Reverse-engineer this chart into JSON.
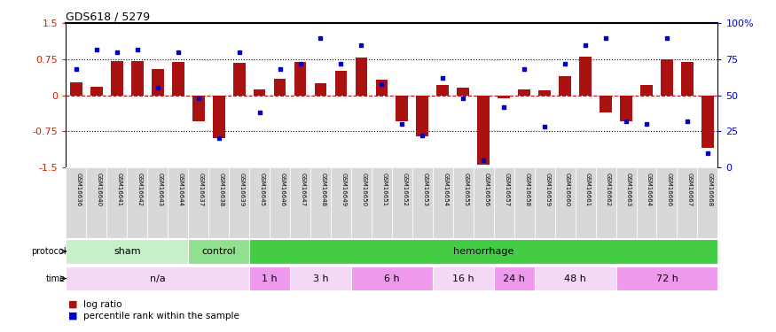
{
  "title": "GDS618 / 5279",
  "samples": [
    "GSM16636",
    "GSM16640",
    "GSM16641",
    "GSM16642",
    "GSM16643",
    "GSM16644",
    "GSM16637",
    "GSM16638",
    "GSM16639",
    "GSM16645",
    "GSM16646",
    "GSM16647",
    "GSM16648",
    "GSM16649",
    "GSM16650",
    "GSM16651",
    "GSM16652",
    "GSM16653",
    "GSM16654",
    "GSM16655",
    "GSM16656",
    "GSM16657",
    "GSM16658",
    "GSM16659",
    "GSM16660",
    "GSM16661",
    "GSM16662",
    "GSM16663",
    "GSM16664",
    "GSM16666",
    "GSM16667",
    "GSM16668"
  ],
  "log_ratio": [
    0.27,
    0.18,
    0.72,
    0.72,
    0.55,
    0.7,
    -0.55,
    -0.9,
    0.68,
    0.12,
    0.35,
    0.7,
    0.25,
    0.5,
    0.78,
    0.32,
    -0.55,
    -0.85,
    0.22,
    0.15,
    -1.45,
    -0.07,
    0.12,
    0.1,
    0.4,
    0.8,
    -0.35,
    -0.55,
    0.22,
    0.75,
    0.7,
    -1.1
  ],
  "percentile": [
    68,
    82,
    80,
    82,
    55,
    80,
    48,
    20,
    80,
    38,
    68,
    72,
    90,
    72,
    85,
    58,
    30,
    22,
    62,
    48,
    5,
    42,
    68,
    28,
    72,
    85,
    90,
    32,
    30,
    90,
    32,
    10
  ],
  "protocol_groups": [
    {
      "label": "sham",
      "start": 0,
      "end": 6,
      "color": "#c8f0c8"
    },
    {
      "label": "control",
      "start": 6,
      "end": 9,
      "color": "#90e090"
    },
    {
      "label": "hemorrhage",
      "start": 9,
      "end": 32,
      "color": "#44cc44"
    }
  ],
  "time_groups": [
    {
      "label": "n/a",
      "start": 0,
      "end": 9,
      "color": "#f5d8f5"
    },
    {
      "label": "1 h",
      "start": 9,
      "end": 11,
      "color": "#ee99ee"
    },
    {
      "label": "3 h",
      "start": 11,
      "end": 14,
      "color": "#f5d8f5"
    },
    {
      "label": "6 h",
      "start": 14,
      "end": 18,
      "color": "#ee99ee"
    },
    {
      "label": "16 h",
      "start": 18,
      "end": 21,
      "color": "#f5d8f5"
    },
    {
      "label": "24 h",
      "start": 21,
      "end": 23,
      "color": "#ee99ee"
    },
    {
      "label": "48 h",
      "start": 23,
      "end": 27,
      "color": "#f5d8f5"
    },
    {
      "label": "72 h",
      "start": 27,
      "end": 32,
      "color": "#ee99ee"
    }
  ],
  "bar_color": "#aa1111",
  "dot_color": "#0000cc",
  "ylim": [
    -1.5,
    1.5
  ],
  "yticks_left": [
    -1.5,
    -0.75,
    0.0,
    0.75,
    1.5
  ],
  "yticks_right": [
    0,
    25,
    50,
    75,
    100
  ],
  "background_color": "#ffffff",
  "tick_label_color_left": "#cc2200",
  "tick_label_color_right": "#0000cc",
  "sample_label_bg": "#d8d8d8"
}
